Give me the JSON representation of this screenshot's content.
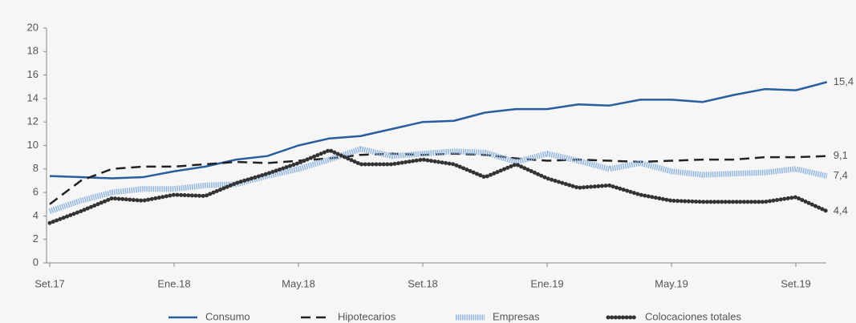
{
  "chart_data": {
    "type": "line",
    "categories": [
      "Set.17",
      null,
      null,
      null,
      "Ene.18",
      null,
      null,
      null,
      "May.18",
      null,
      null,
      null,
      "Set.18",
      null,
      null,
      null,
      "Ene.19",
      null,
      null,
      null,
      "May.19",
      null,
      null,
      null,
      "Set.19",
      null
    ],
    "ylim": [
      0,
      20
    ],
    "yticks": [
      0,
      2,
      4,
      6,
      8,
      10,
      12,
      14,
      16,
      18,
      20
    ],
    "series": [
      {
        "name": "Consumo",
        "color": "#2a5d9f",
        "style": "solid",
        "values": [
          7.4,
          7.3,
          7.2,
          7.3,
          7.8,
          8.2,
          8.8,
          9.1,
          10.0,
          10.6,
          10.8,
          11.4,
          12.0,
          12.1,
          12.8,
          13.1,
          13.1,
          13.5,
          13.4,
          13.9,
          13.9,
          13.7,
          14.3,
          14.8,
          14.7,
          15.4
        ],
        "value_labels": [
          null,
          null,
          null,
          null,
          null,
          null,
          null,
          null,
          null,
          null,
          null,
          null,
          null,
          null,
          null,
          null,
          null,
          null,
          null,
          null,
          null,
          null,
          null,
          null,
          null,
          "15,4"
        ]
      },
      {
        "name": "Hipotecarios",
        "color": "#222222",
        "style": "dashed",
        "values": [
          5.0,
          7.0,
          8.0,
          8.2,
          8.2,
          8.4,
          8.6,
          8.5,
          8.7,
          8.9,
          9.2,
          9.3,
          9.2,
          9.3,
          9.2,
          8.9,
          8.7,
          8.8,
          8.7,
          8.6,
          8.7,
          8.8,
          8.8,
          9.0,
          9.0,
          9.1
        ],
        "value_labels": [
          null,
          null,
          null,
          null,
          null,
          null,
          null,
          null,
          null,
          null,
          null,
          null,
          null,
          null,
          null,
          null,
          null,
          null,
          null,
          null,
          null,
          null,
          null,
          null,
          null,
          "9,1"
        ]
      },
      {
        "name": "Empresas",
        "color": "#8fb4e0",
        "style": "striped",
        "values": [
          4.4,
          5.3,
          6.0,
          6.3,
          6.3,
          6.6,
          6.7,
          7.4,
          8.0,
          8.8,
          9.7,
          9.1,
          9.3,
          9.5,
          9.4,
          8.6,
          9.3,
          8.7,
          8.0,
          8.5,
          7.8,
          7.5,
          7.6,
          7.7,
          8.0,
          7.4
        ],
        "value_labels": [
          null,
          null,
          null,
          null,
          null,
          null,
          null,
          null,
          null,
          null,
          null,
          null,
          null,
          null,
          null,
          null,
          null,
          null,
          null,
          null,
          null,
          null,
          null,
          null,
          null,
          "7,4"
        ]
      },
      {
        "name": "Colocaciones totales",
        "color": "#333333",
        "style": "beaded",
        "values": [
          3.4,
          4.4,
          5.5,
          5.3,
          5.8,
          5.7,
          6.8,
          7.6,
          8.5,
          9.6,
          8.4,
          8.4,
          8.8,
          8.4,
          7.3,
          8.4,
          7.2,
          6.4,
          6.6,
          5.8,
          5.3,
          5.2,
          5.2,
          5.2,
          5.6,
          4.4
        ],
        "value_labels": [
          null,
          null,
          null,
          null,
          null,
          null,
          null,
          null,
          null,
          null,
          null,
          null,
          null,
          null,
          null,
          null,
          null,
          null,
          null,
          null,
          null,
          null,
          null,
          null,
          null,
          "4,4"
        ]
      }
    ]
  }
}
